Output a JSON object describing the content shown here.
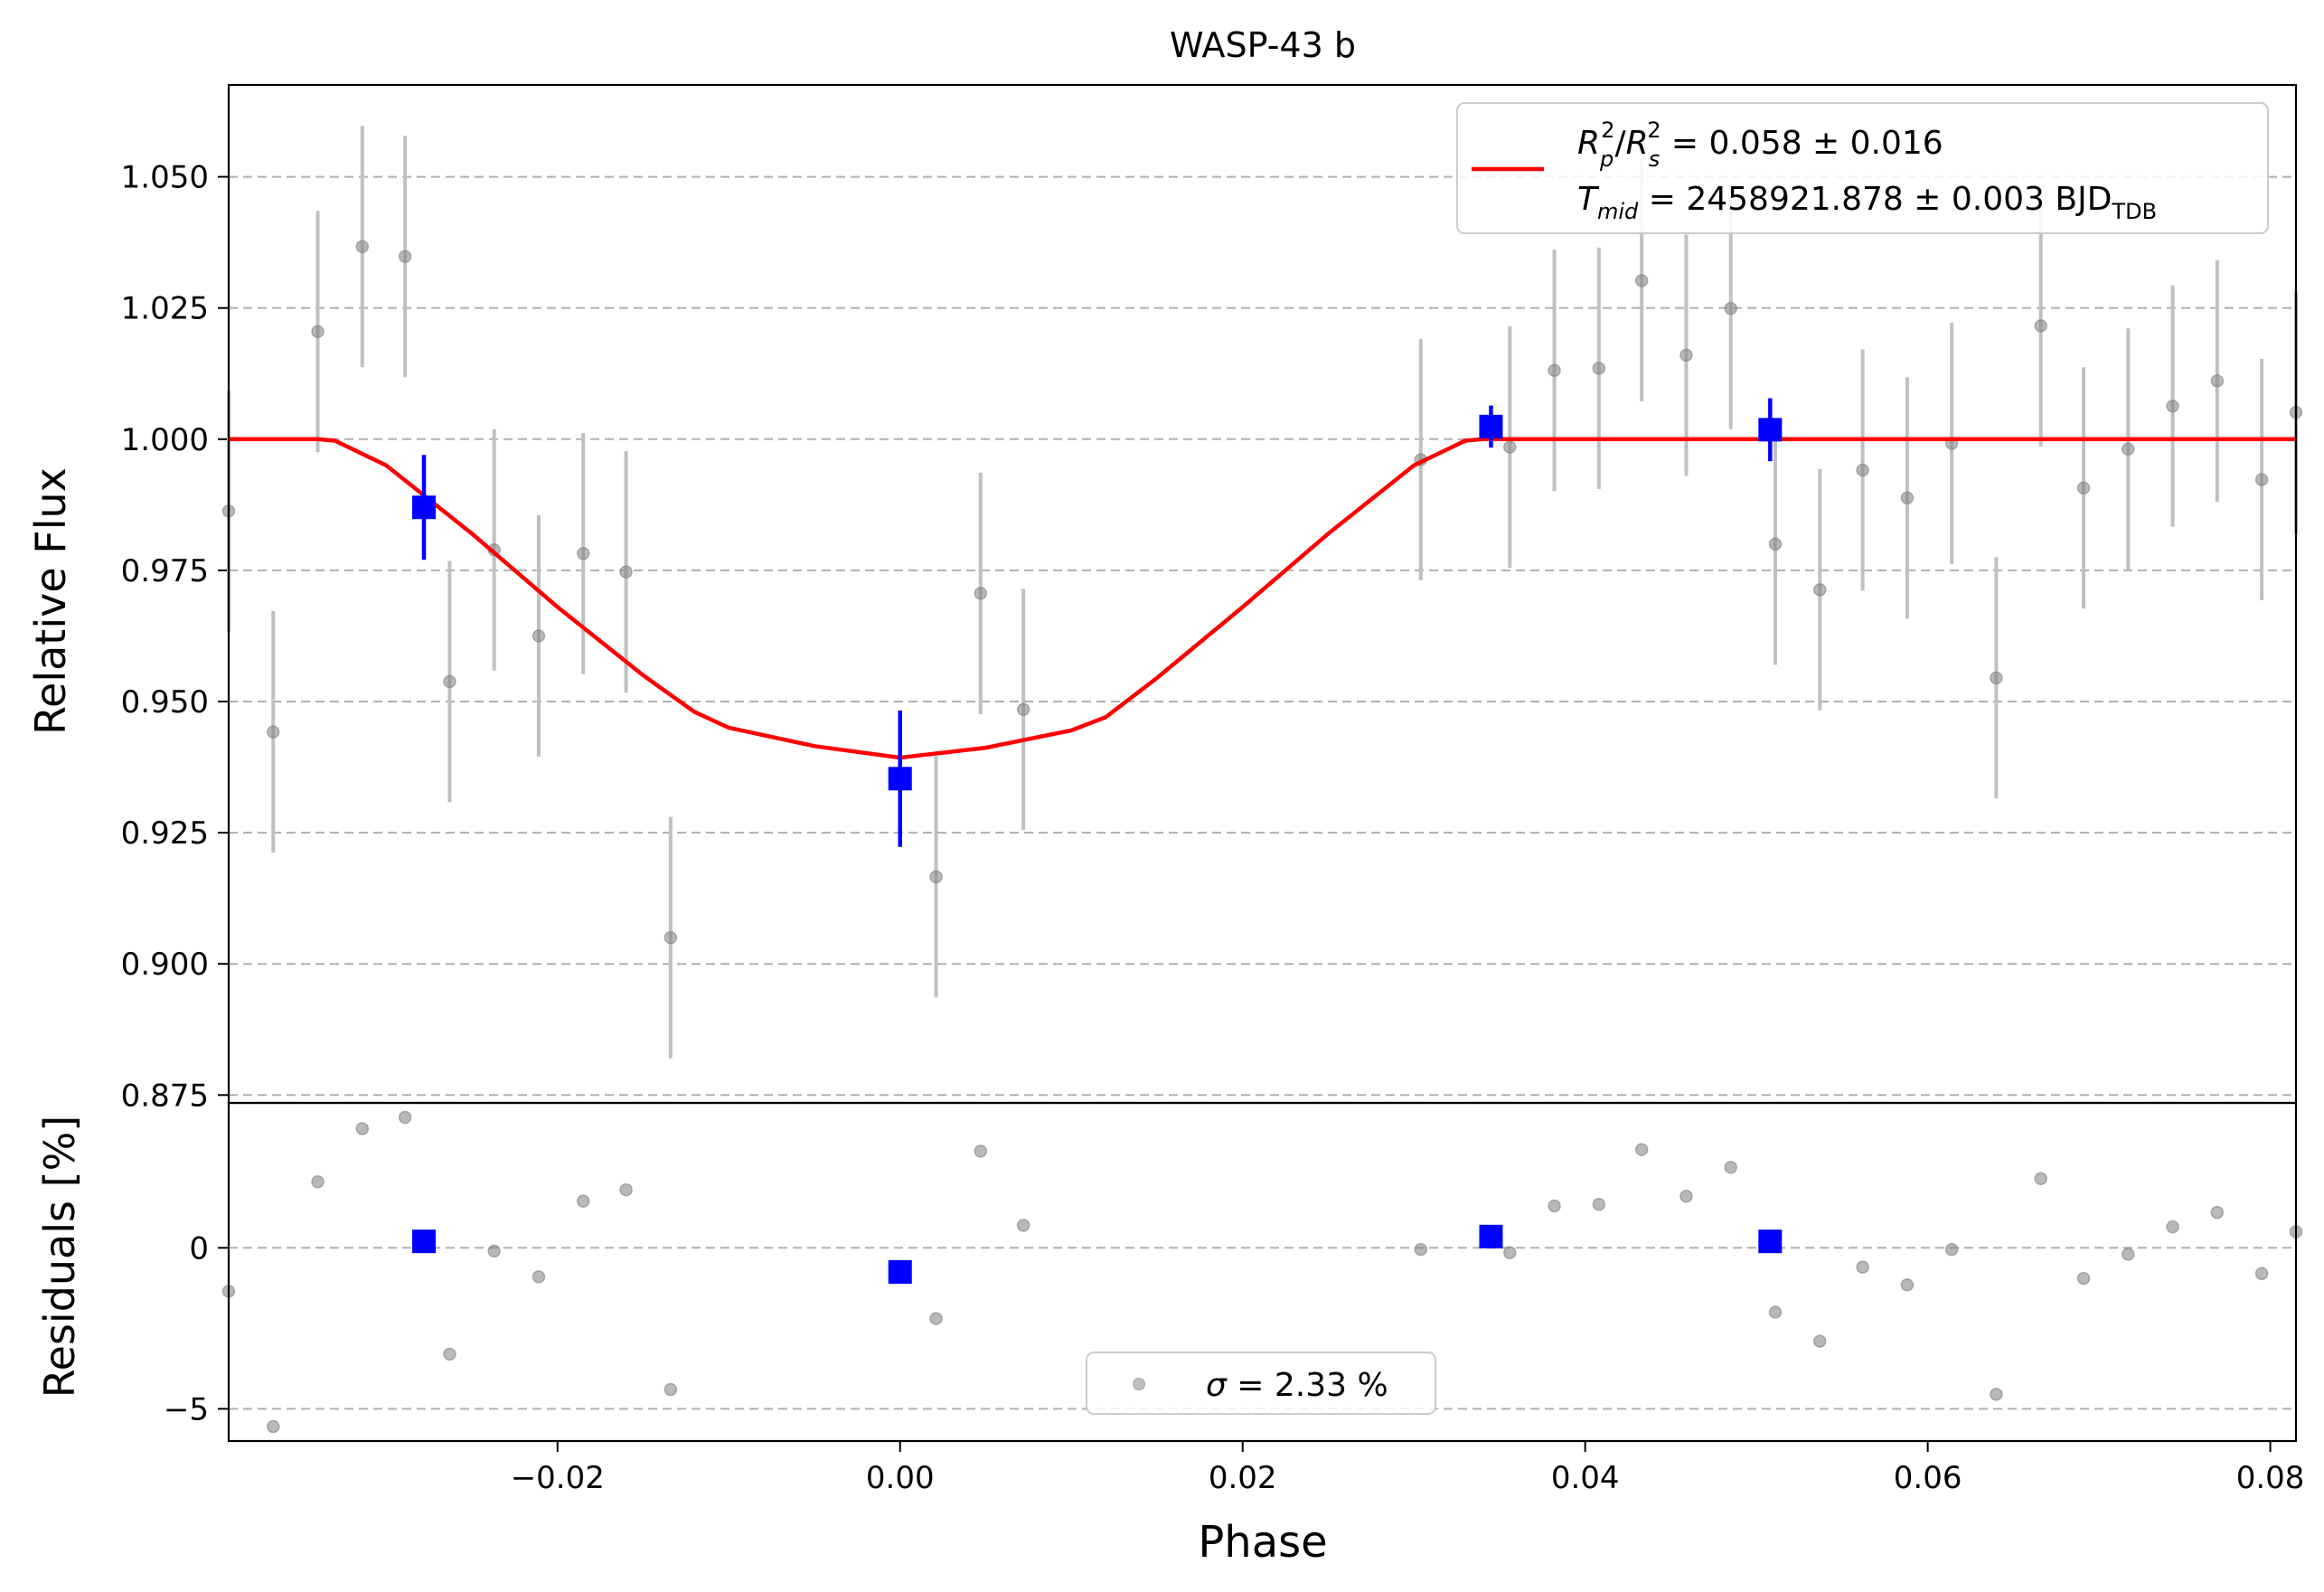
{
  "chart_data": [
    {
      "type": "scatter",
      "title": "WASP-43 b",
      "xlabel": "",
      "ylabel": "Relative Flux",
      "xlim": [
        -0.0392,
        0.0815
      ],
      "ylim": [
        0.8735,
        1.0675
      ],
      "yticks": [
        0.875,
        0.9,
        0.925,
        0.95,
        0.975,
        1.0,
        1.025,
        1.05
      ],
      "ytick_labels": [
        "0.875",
        "0.900",
        "0.925",
        "0.950",
        "0.975",
        "1.000",
        "1.025",
        "1.050"
      ],
      "grid": "y dashed",
      "legend_position": "top-right",
      "legend": {
        "line1": {
          "r": "R",
          "p": "p",
          "two": "2",
          "slash": "/",
          "s": "s",
          "rest": " = 0.058 ± 0.016"
        },
        "line2": {
          "t": "T",
          "mid": "mid",
          "rest": " = 2458921.878 ± 0.003 BJD",
          "tdb": "TDB"
        }
      },
      "series": [
        {
          "kind": "data",
          "color": "#808080",
          "x": [
            -0.0392,
            -0.0366,
            -0.034,
            -0.0314,
            -0.0289,
            -0.0263,
            -0.0237,
            -0.0211,
            -0.0185,
            -0.016,
            -0.0134,
            -0.0108,
            -0.0082,
            -0.0056,
            -0.003,
            -0.0005,
            0.0021,
            0.0047,
            0.0072,
            0.0098,
            0.0124,
            0.015,
            0.0176,
            0.0201,
            0.0227,
            0.0253,
            0.0279,
            0.0304,
            0.033,
            0.0356,
            0.0382,
            0.0408,
            0.0433,
            0.0459,
            0.0485,
            0.0511,
            0.0537,
            0.0562,
            0.0588,
            0.0614,
            0.064,
            0.0666,
            0.0691,
            0.0717,
            0.0743,
            0.0769,
            0.0795,
            0.0815
          ],
          "y": [
            0.9863,
            0.9442,
            1.0205,
            1.0367,
            1.0348,
            0.9538,
            0.9789,
            0.9625,
            0.9782,
            0.9747,
            0.905,
            null,
            null,
            null,
            null,
            null,
            0.9166,
            0.9706,
            0.9485,
            null,
            null,
            null,
            null,
            null,
            null,
            null,
            null,
            0.9961,
            null,
            0.9985,
            1.0131,
            1.0135,
            1.0302,
            1.016,
            1.0249,
            0.98,
            0.9713,
            0.9941,
            0.9888,
            0.9992,
            0.9545,
            1.0216,
            0.9907,
            0.9981,
            1.0063,
            1.0111,
            0.9923,
            1.0051
          ],
          "yerr": 0.023
        },
        {
          "kind": "binned",
          "color": "#0000ff",
          "x": [
            -0.0278,
            0.0,
            0.0345,
            0.0508
          ],
          "y": [
            0.987,
            0.9353,
            1.0024,
            1.0018
          ],
          "yerr": [
            0.01,
            0.013,
            0.004,
            0.006
          ]
        },
        {
          "kind": "model",
          "color": "#ff0000",
          "x": [
            -0.0392,
            -0.034,
            -0.033,
            -0.03,
            -0.025,
            -0.02,
            -0.015,
            -0.012,
            -0.01,
            -0.005,
            0.0,
            0.005,
            0.01,
            0.012,
            0.015,
            0.02,
            0.025,
            0.03,
            0.033,
            0.034,
            0.0815
          ],
          "y": [
            1.0,
            1.0,
            0.9997,
            0.995,
            0.982,
            0.968,
            0.955,
            0.948,
            0.945,
            0.9415,
            0.9393,
            0.9412,
            0.9445,
            0.947,
            0.9545,
            0.968,
            0.982,
            0.995,
            0.9997,
            1.0,
            1.0
          ]
        }
      ]
    },
    {
      "type": "scatter",
      "xlabel": "Phase",
      "ylabel": "Residuals [%]",
      "xlim": [
        -0.0392,
        0.0815
      ],
      "ylim": [
        -6.0,
        4.5
      ],
      "xticks": [
        -0.02,
        0.0,
        0.02,
        0.04,
        0.06,
        0.08
      ],
      "xtick_labels": [
        "−0.02",
        "0.00",
        "0.02",
        "0.04",
        "0.06",
        "0.08"
      ],
      "yticks": [
        -5,
        0
      ],
      "ytick_labels": [
        "−5",
        "0"
      ],
      "grid": "y dashed",
      "legend_position": "bottom-center",
      "legend": {
        "sigma": "σ",
        "rest": " = 2.33 %"
      },
      "series": [
        {
          "kind": "data",
          "color": "#808080",
          "x": [
            -0.0392,
            -0.0366,
            -0.034,
            -0.0314,
            -0.0289,
            -0.0263,
            -0.0237,
            -0.0211,
            -0.0185,
            -0.016,
            -0.0134,
            0.0021,
            0.0047,
            0.0072,
            0.0304,
            0.0356,
            0.0382,
            0.0408,
            0.0433,
            0.0459,
            0.0485,
            0.0511,
            0.0537,
            0.0562,
            0.0588,
            0.0614,
            0.064,
            0.0666,
            0.0691,
            0.0717,
            0.0743,
            0.0769,
            0.0795,
            0.0815
          ],
          "y": [
            -1.35,
            -5.55,
            2.05,
            3.7,
            4.05,
            -3.3,
            -0.1,
            -0.9,
            1.45,
            1.8,
            -4.4,
            -2.2,
            3.0,
            0.7,
            -0.05,
            -0.15,
            1.3,
            1.35,
            3.05,
            1.6,
            2.5,
            -2.0,
            -2.9,
            -0.6,
            -1.15,
            -0.05,
            -4.55,
            2.15,
            -0.95,
            -0.2,
            0.65,
            1.1,
            -0.8,
            0.5
          ]
        },
        {
          "kind": "binned",
          "color": "#0000ff",
          "x": [
            -0.0278,
            0.0,
            0.0345,
            0.0508
          ],
          "y": [
            0.2,
            -0.75,
            0.35,
            0.2
          ]
        }
      ]
    }
  ]
}
